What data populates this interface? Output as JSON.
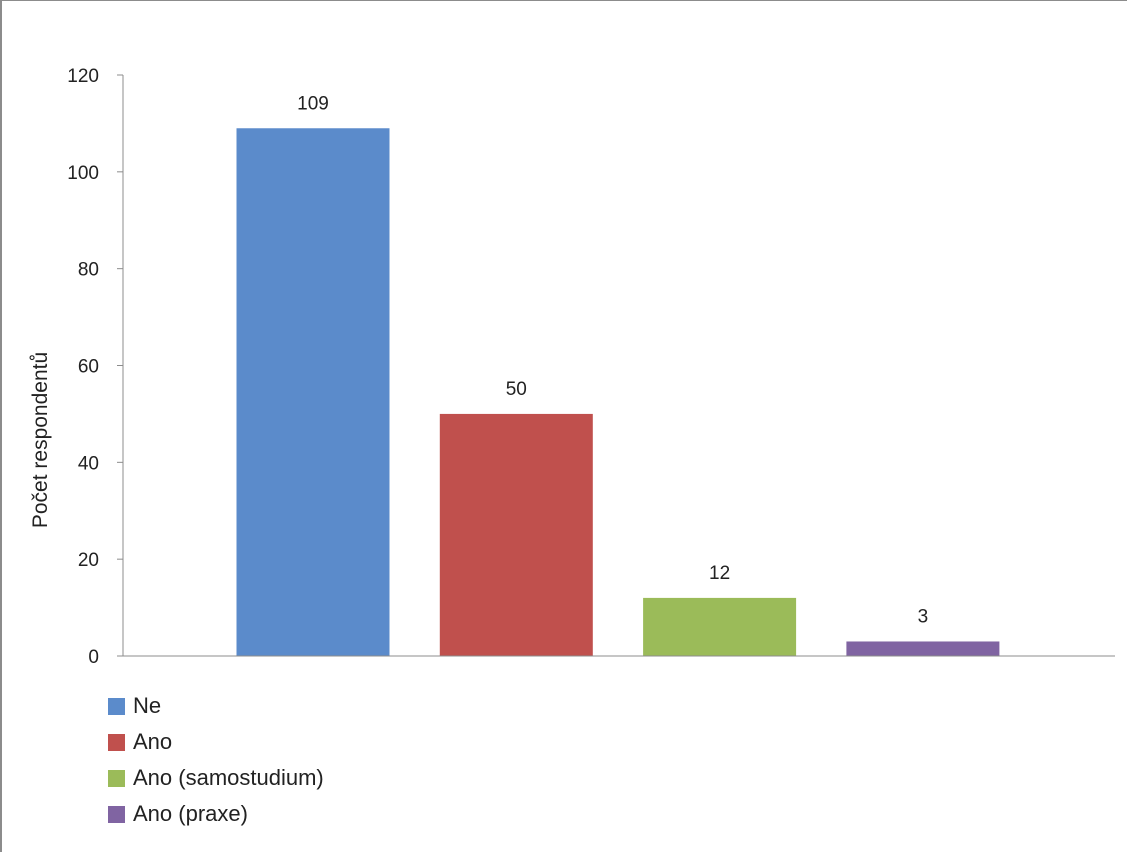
{
  "chart_data": {
    "type": "bar",
    "categories": [
      "Ne",
      "Ano",
      "Ano (samostudium)",
      "Ano (praxe)"
    ],
    "values": [
      109,
      50,
      12,
      3
    ],
    "data_labels": [
      "109",
      "50",
      "12",
      "3"
    ],
    "colors": [
      "#5b8bcb",
      "#c0504d",
      "#9bbb59",
      "#8064a2"
    ],
    "title": "",
    "xlabel": "",
    "ylabel": "Počet respondentů",
    "ylim": [
      0,
      120
    ],
    "yticks": [
      "0",
      "20",
      "40",
      "60",
      "80",
      "100",
      "120"
    ],
    "grid": false,
    "legend_position": "bottom-left"
  }
}
